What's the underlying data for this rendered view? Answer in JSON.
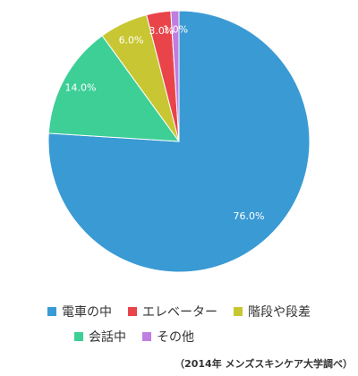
{
  "chart_data": {
    "type": "pie",
    "categories": [
      "電車の中",
      "エレベーター",
      "階段や段差",
      "会話中",
      "その他"
    ],
    "values": [
      76.0,
      3.0,
      6.0,
      14.0,
      1.0
    ],
    "labels": [
      "76.0%",
      "3.0%",
      "6.0%",
      "14.0%",
      "1.0%"
    ],
    "colors": [
      "#3a9ad4",
      "#e8444a",
      "#c8c733",
      "#3dcf96",
      "#c07ee0"
    ],
    "slice_order": [
      0,
      3,
      2,
      1,
      4
    ],
    "legend_placement": "bottom"
  },
  "legend": {
    "items": [
      {
        "label": "電車の中",
        "color": "#3a9ad4"
      },
      {
        "label": "エレベーター",
        "color": "#e8444a"
      },
      {
        "label": "階段や段差",
        "color": "#c8c733"
      },
      {
        "label": "会話中",
        "color": "#3dcf96"
      },
      {
        "label": "その他",
        "color": "#c07ee0"
      }
    ]
  },
  "source_note": "（2014年 メンズスキンケア大学調べ）"
}
